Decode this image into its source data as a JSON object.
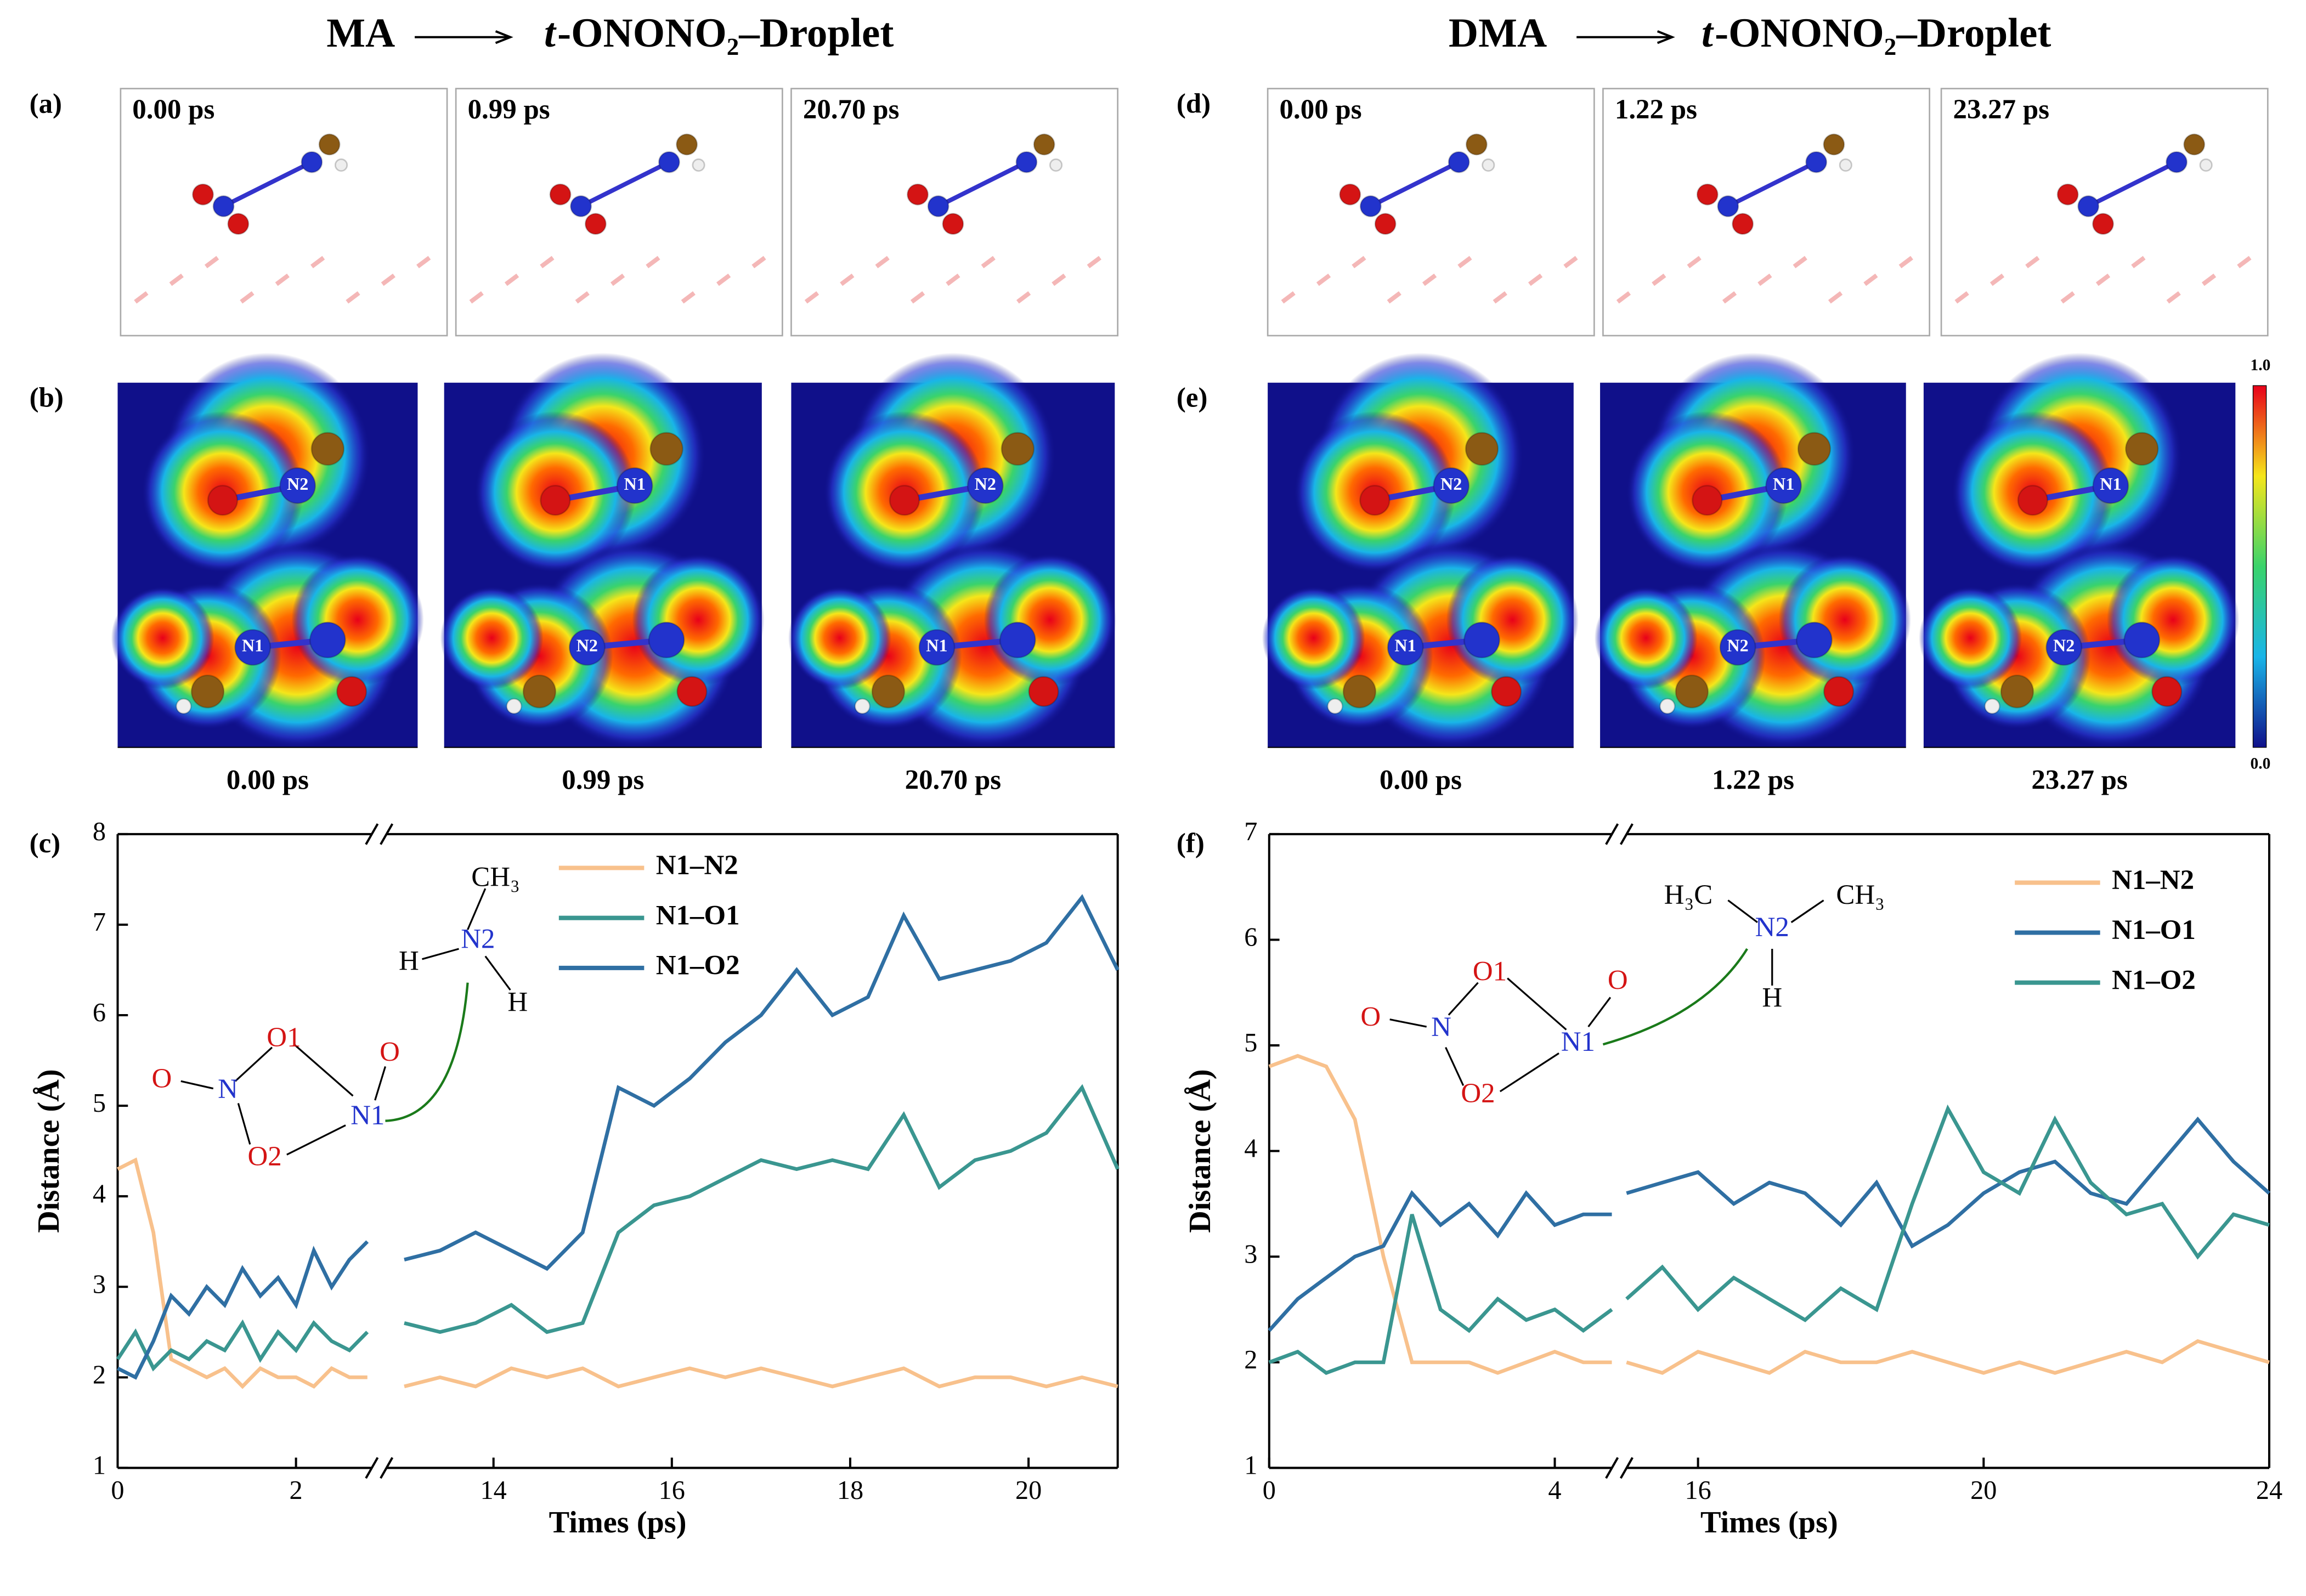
{
  "header": {
    "left": [
      "MA",
      "t",
      "-ONONO₂–Droplet"
    ],
    "right": [
      "DMA",
      "t",
      "-ONONO₂–Droplet"
    ]
  },
  "panel_a": {
    "label": "(a)",
    "times": [
      "0.00 ps",
      "0.99 ps",
      "20.70 ps"
    ]
  },
  "panel_b": {
    "label": "(b)",
    "times": [
      "0.00 ps",
      "0.99 ps",
      "20.70 ps"
    ],
    "atoms": [
      "N2",
      "N1",
      "N1",
      "N2",
      "N2",
      "N1"
    ]
  },
  "panel_d": {
    "label": "(d)",
    "times": [
      "0.00 ps",
      "1.22 ps",
      "23.27 ps"
    ]
  },
  "panel_e": {
    "label": "(e)",
    "times": [
      "0.00 ps",
      "1.22 ps",
      "23.27 ps"
    ],
    "atoms": [
      "N2",
      "N1",
      "N1",
      "N2",
      "N1",
      "N2"
    ],
    "colorbar": [
      "1.0",
      "0.0"
    ]
  },
  "chart_data": [
    {
      "type": "line",
      "label": "(c)",
      "xlabel": "Times (ps)",
      "ylabel": "Distance (Å)",
      "structure_labels": [
        "CH₃",
        "N2",
        "H",
        "H",
        "O1",
        "O",
        "O",
        "N",
        "N1",
        "O2"
      ],
      "x": [
        0,
        0.2,
        0.4,
        0.6,
        0.8,
        1.0,
        1.2,
        1.4,
        1.6,
        1.8,
        2.0,
        2.2,
        2.4,
        2.6,
        2.8,
        13,
        13.4,
        13.8,
        14.2,
        14.6,
        15,
        15.4,
        15.8,
        16.2,
        16.6,
        17,
        17.4,
        17.8,
        18.2,
        18.6,
        19,
        19.4,
        19.8,
        20.2,
        20.6,
        21
      ],
      "xlim": [
        0,
        21
      ],
      "xbreak": [
        2.85,
        12.8
      ],
      "xticks": [
        0,
        2,
        14,
        16,
        18,
        20
      ],
      "ylim": [
        1,
        8
      ],
      "yticks": [
        1,
        2,
        3,
        4,
        5,
        6,
        7,
        8
      ],
      "series": [
        {
          "name": "N1–N2",
          "color": "#f8c18c",
          "values": [
            4.3,
            4.4,
            3.6,
            2.2,
            2.1,
            2.0,
            2.1,
            1.9,
            2.1,
            2.0,
            2.0,
            1.9,
            2.1,
            2.0,
            2.0,
            1.9,
            2.0,
            1.9,
            2.1,
            2.0,
            2.1,
            1.9,
            2.0,
            2.1,
            2.0,
            2.1,
            2.0,
            1.9,
            2.0,
            2.1,
            1.9,
            2.0,
            2.0,
            1.9,
            2.0,
            1.9
          ]
        },
        {
          "name": "N1–O1",
          "color": "#3a9690",
          "values": [
            2.2,
            2.5,
            2.1,
            2.3,
            2.2,
            2.4,
            2.3,
            2.6,
            2.2,
            2.5,
            2.3,
            2.6,
            2.4,
            2.3,
            2.5,
            2.6,
            2.5,
            2.6,
            2.8,
            2.5,
            2.6,
            3.6,
            3.9,
            4.0,
            4.2,
            4.4,
            4.3,
            4.4,
            4.3,
            4.9,
            4.1,
            4.4,
            4.5,
            4.7,
            5.2,
            4.3
          ]
        },
        {
          "name": "N1–O2",
          "color": "#2f6fa3",
          "values": [
            2.1,
            2.0,
            2.4,
            2.9,
            2.7,
            3.0,
            2.8,
            3.2,
            2.9,
            3.1,
            2.8,
            3.4,
            3.0,
            3.3,
            3.5,
            3.3,
            3.4,
            3.6,
            3.4,
            3.2,
            3.6,
            5.2,
            5.0,
            5.3,
            5.7,
            6.0,
            6.5,
            6.0,
            6.2,
            7.1,
            6.4,
            6.5,
            6.6,
            6.8,
            7.3,
            6.5
          ]
        }
      ]
    },
    {
      "type": "line",
      "label": "(f)",
      "xlabel": "Times (ps)",
      "ylabel": "Distance (Å)",
      "structure_labels": [
        "H₃C",
        "CH₃",
        "N2",
        "H",
        "O1",
        "O",
        "O",
        "N",
        "N1",
        "O2"
      ],
      "x": [
        0,
        0.4,
        0.8,
        1.2,
        1.6,
        2,
        2.4,
        2.8,
        3.2,
        3.6,
        4,
        4.4,
        4.8,
        15,
        15.5,
        16,
        16.5,
        17,
        17.5,
        18,
        18.5,
        19,
        19.5,
        20,
        20.5,
        21,
        21.5,
        22,
        22.5,
        23,
        23.5,
        24
      ],
      "xlim": [
        0,
        24
      ],
      "xbreak": [
        4.8,
        15
      ],
      "xticks": [
        0,
        4,
        16,
        20,
        24
      ],
      "ylim": [
        1,
        7
      ],
      "yticks": [
        1,
        2,
        3,
        4,
        5,
        6,
        7
      ],
      "series": [
        {
          "name": "N1–N2",
          "color": "#f8c18c",
          "values": [
            4.8,
            4.9,
            4.8,
            4.3,
            3.0,
            2.0,
            2.0,
            2.0,
            1.9,
            2.0,
            2.1,
            2.0,
            2.0,
            2.0,
            1.9,
            2.1,
            2.0,
            1.9,
            2.1,
            2.0,
            2.0,
            2.1,
            2.0,
            1.9,
            2.0,
            1.9,
            2.0,
            2.1,
            2.0,
            2.2,
            2.1,
            2.0
          ]
        },
        {
          "name": "N1–O1",
          "color": "#2f6fa3",
          "values": [
            2.3,
            2.6,
            2.8,
            3.0,
            3.1,
            3.6,
            3.3,
            3.5,
            3.2,
            3.6,
            3.3,
            3.4,
            3.4,
            3.6,
            3.7,
            3.8,
            3.5,
            3.7,
            3.6,
            3.3,
            3.7,
            3.1,
            3.3,
            3.6,
            3.8,
            3.9,
            3.6,
            3.5,
            3.9,
            4.3,
            3.9,
            3.6
          ]
        },
        {
          "name": "N1–O2",
          "color": "#3a9690",
          "values": [
            2.0,
            2.1,
            1.9,
            2.0,
            2.0,
            3.4,
            2.5,
            2.3,
            2.6,
            2.4,
            2.5,
            2.3,
            2.5,
            2.6,
            2.9,
            2.5,
            2.8,
            2.6,
            2.4,
            2.7,
            2.5,
            3.5,
            4.4,
            3.8,
            3.6,
            4.3,
            3.7,
            3.4,
            3.5,
            3.0,
            3.4,
            3.3
          ]
        }
      ]
    }
  ]
}
